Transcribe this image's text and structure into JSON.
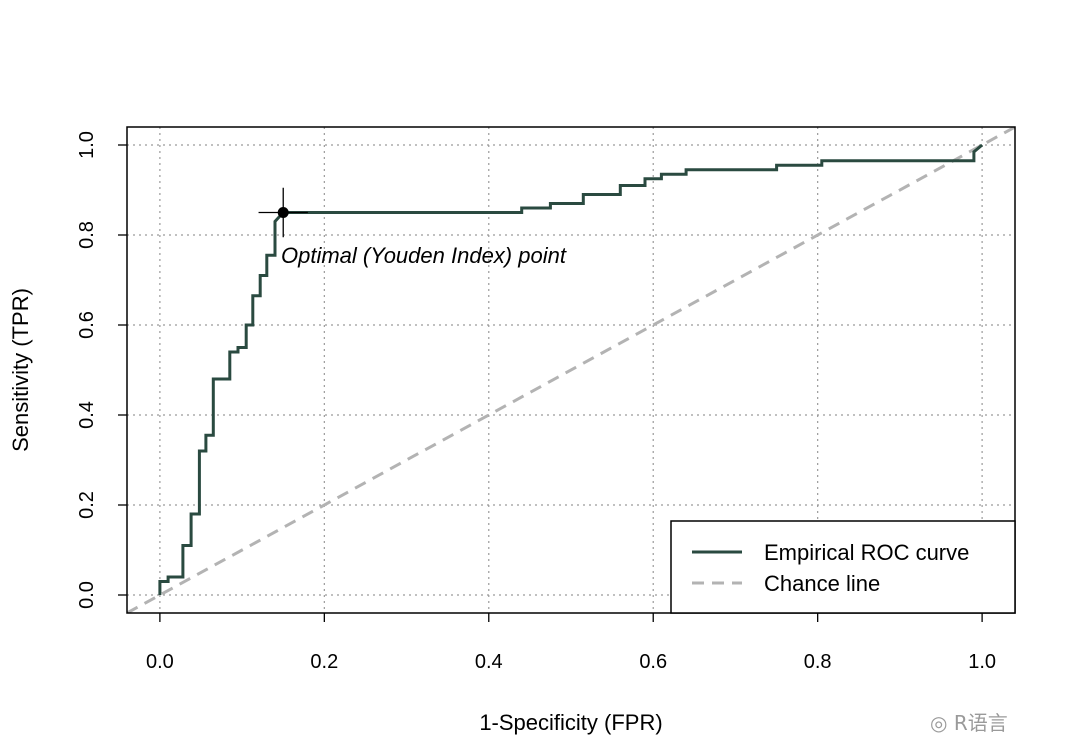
{
  "chart_data": {
    "type": "line",
    "xlabel": "1-Specificity (FPR)",
    "ylabel": "Sensitivity (TPR)",
    "xlim": [
      -0.04,
      1.04
    ],
    "ylim": [
      -0.04,
      1.04
    ],
    "xticks": [
      0.0,
      0.2,
      0.4,
      0.6,
      0.8,
      1.0
    ],
    "yticks": [
      0.0,
      0.2,
      0.4,
      0.6,
      0.8,
      1.0
    ],
    "xtick_labels": [
      "0.0",
      "0.2",
      "0.4",
      "0.6",
      "0.8",
      "1.0"
    ],
    "ytick_labels": [
      "0.0",
      "0.2",
      "0.4",
      "0.6",
      "0.8",
      "1.0"
    ],
    "grid": true,
    "legend_position": "bottom-right",
    "series": [
      {
        "name": "Empirical ROC curve",
        "style": "solid",
        "color": "#2a4a40",
        "x": [
          0.0,
          0.0,
          0.01,
          0.01,
          0.028,
          0.028,
          0.038,
          0.038,
          0.048,
          0.048,
          0.056,
          0.056,
          0.065,
          0.065,
          0.085,
          0.085,
          0.095,
          0.095,
          0.105,
          0.105,
          0.113,
          0.113,
          0.122,
          0.122,
          0.13,
          0.13,
          0.14,
          0.14,
          0.15,
          0.44,
          0.44,
          0.475,
          0.475,
          0.515,
          0.515,
          0.56,
          0.56,
          0.59,
          0.59,
          0.61,
          0.61,
          0.64,
          0.64,
          0.75,
          0.75,
          0.805,
          0.805,
          0.99,
          0.99,
          1.0
        ],
        "y": [
          0.0,
          0.03,
          0.03,
          0.04,
          0.04,
          0.11,
          0.11,
          0.18,
          0.18,
          0.32,
          0.32,
          0.355,
          0.355,
          0.48,
          0.48,
          0.54,
          0.54,
          0.55,
          0.55,
          0.6,
          0.6,
          0.665,
          0.665,
          0.71,
          0.71,
          0.755,
          0.755,
          0.83,
          0.85,
          0.85,
          0.86,
          0.86,
          0.87,
          0.87,
          0.89,
          0.89,
          0.91,
          0.91,
          0.925,
          0.925,
          0.935,
          0.935,
          0.945,
          0.945,
          0.955,
          0.955,
          0.965,
          0.965,
          0.985,
          1.0
        ]
      },
      {
        "name": "Chance line",
        "style": "dashed",
        "color": "#b3b3b3",
        "x": [
          -0.04,
          1.04
        ],
        "y": [
          -0.04,
          1.04
        ]
      }
    ],
    "optimal_point": {
      "x": 0.15,
      "y": 0.85,
      "cross_halfwidth": 0.03,
      "cross_halfheight": 0.055
    },
    "annotation": "Optimal (Youden Index) point"
  },
  "watermark": "R语言"
}
